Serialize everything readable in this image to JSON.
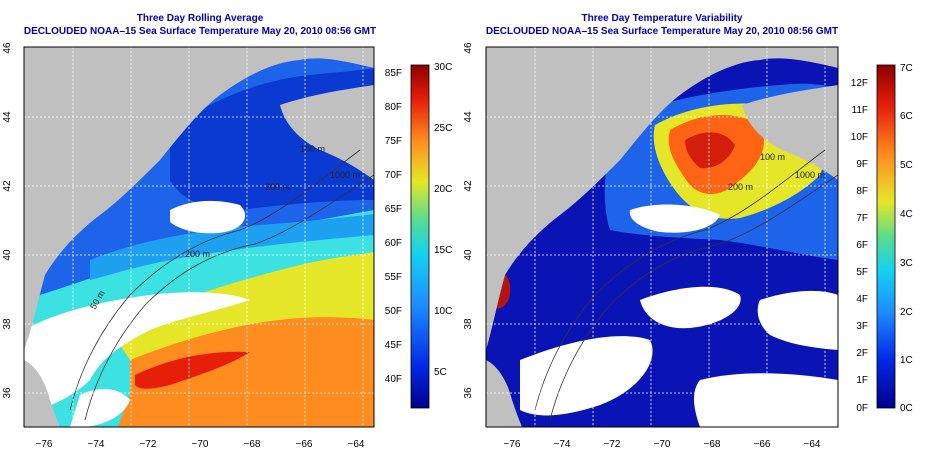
{
  "panels": [
    {
      "title": "Three Day Rolling Average",
      "subtitle": "DECLOUDED NOAA–15 Sea Surface Temperature May 20, 2010 08:56 GMT",
      "contour_labels": [
        "100 m",
        "200 m",
        "1000 m",
        "200 m",
        "50 m"
      ],
      "colorbar": {
        "left_ticks": [
          "85F",
          "80F",
          "75F",
          "70F",
          "65F",
          "60F",
          "55F",
          "50F",
          "45F",
          "40F"
        ],
        "right_ticks": [
          "30C",
          "25C",
          "20C",
          "15C",
          "10C",
          "5C"
        ]
      }
    },
    {
      "title": "Three Day Temperature Variability",
      "subtitle": "DECLOUDED NOAA–15 Sea Surface Temperature May 20, 2010 08:56 GMT",
      "contour_labels": [
        "100 m",
        "200 m",
        "1000 m"
      ],
      "colorbar": {
        "left_ticks": [
          "12F",
          "11F",
          "10F",
          "9F",
          "8F",
          "7F",
          "6F",
          "5F",
          "4F",
          "3F",
          "2F",
          "1F",
          "0F"
        ],
        "right_ticks": [
          "7C",
          "6C",
          "5C",
          "4C",
          "3C",
          "2C",
          "1C",
          "0C"
        ]
      }
    }
  ],
  "axes": {
    "x_ticks": [
      "−76",
      "−74",
      "−72",
      "−70",
      "−68",
      "−66",
      "−64"
    ],
    "y_ticks": [
      "36",
      "38",
      "40",
      "42",
      "44",
      "46"
    ]
  },
  "colors": {
    "title": "#0000b4",
    "land": "#c0c0c0",
    "cloud": "#ffffff",
    "grid": "#ffffff"
  }
}
